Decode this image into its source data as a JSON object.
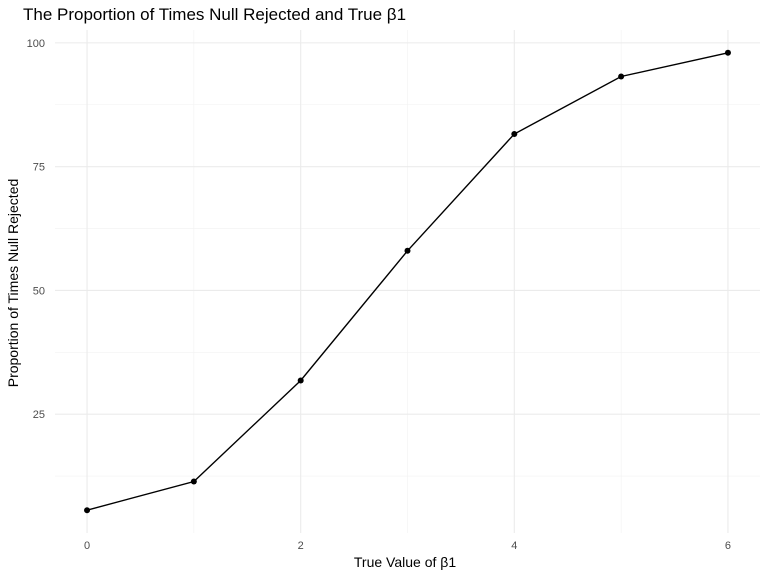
{
  "chart_data": {
    "type": "line",
    "title": "The Proportion of Times Null Rejected and True β1",
    "xlabel": "True Value of β1",
    "ylabel": "Proportion of Times Null Rejected",
    "x": [
      0,
      1,
      2,
      3,
      4,
      5,
      6
    ],
    "series": [
      {
        "values": [
          5.6,
          11.4,
          31.8,
          58.0,
          81.6,
          93.2,
          98.0
        ]
      }
    ],
    "xlim": [
      -0.3,
      6.3
    ],
    "ylim": [
      1.0,
      102.6
    ],
    "x_ticks": [
      0,
      2,
      4,
      6
    ],
    "x_tick_labels": [
      "0",
      "2",
      "4",
      "6"
    ],
    "x_minor_ticks": [
      1,
      3,
      5
    ],
    "y_ticks": [
      25,
      50,
      75,
      100
    ],
    "y_tick_labels": [
      "25",
      "50",
      "75",
      "100"
    ],
    "y_minor_ticks": [
      12.5,
      37.5,
      62.5,
      87.5
    ],
    "grid": true,
    "legend": "none",
    "colors": {
      "line": "#000000",
      "point": "#000000",
      "grid_major": "#ebebeb",
      "grid_minor": "#f2f2f2",
      "background": "#ffffff"
    }
  }
}
